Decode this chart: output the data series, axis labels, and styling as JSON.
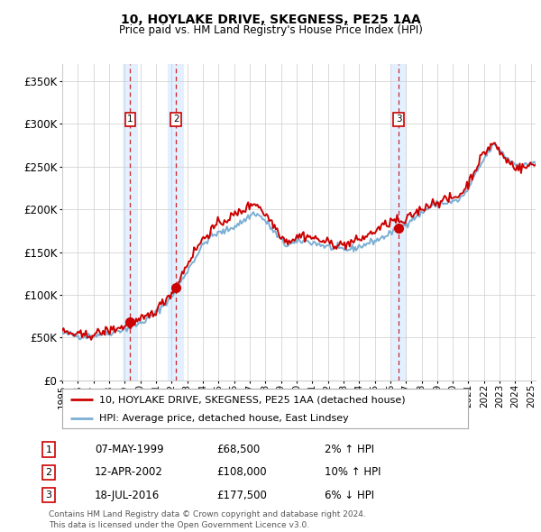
{
  "title": "10, HOYLAKE DRIVE, SKEGNESS, PE25 1AA",
  "subtitle": "Price paid vs. HM Land Registry's House Price Index (HPI)",
  "ylim": [
    0,
    370000
  ],
  "yticks": [
    0,
    50000,
    100000,
    150000,
    200000,
    250000,
    300000,
    350000
  ],
  "ytick_labels": [
    "£0",
    "£50K",
    "£100K",
    "£150K",
    "£200K",
    "£250K",
    "£300K",
    "£350K"
  ],
  "sale_years_decimal": [
    1999.354,
    2002.279,
    2016.542
  ],
  "sale_prices": [
    68500,
    108000,
    177500
  ],
  "sale_labels": [
    "1",
    "2",
    "3"
  ],
  "sale_pct": [
    "2% ↑ HPI",
    "10% ↑ HPI",
    "6% ↓ HPI"
  ],
  "sale_date_strs": [
    "07-MAY-1999",
    "12-APR-2002",
    "18-JUL-2016"
  ],
  "sale_price_strs": [
    "£68,500",
    "£108,000",
    "£177,500"
  ],
  "hpi_color": "#7bafd4",
  "price_color": "#cc0000",
  "shade_color": "#ddeeff",
  "grid_color": "#cccccc",
  "background_color": "#ffffff",
  "legend_label_price": "10, HOYLAKE DRIVE, SKEGNESS, PE25 1AA (detached house)",
  "legend_label_hpi": "HPI: Average price, detached house, East Lindsey",
  "footer": "Contains HM Land Registry data © Crown copyright and database right 2024.\nThis data is licensed under the Open Government Licence v3.0.",
  "xlim_start": 1995.0,
  "xlim_end": 2025.3,
  "hpi_key_points": [
    [
      1995.0,
      55000
    ],
    [
      1995.5,
      54000
    ],
    [
      1996.0,
      52000
    ],
    [
      1996.5,
      51500
    ],
    [
      1997.0,
      52500
    ],
    [
      1997.5,
      54000
    ],
    [
      1998.0,
      56000
    ],
    [
      1998.5,
      58000
    ],
    [
      1999.0,
      60000
    ],
    [
      1999.5,
      63000
    ],
    [
      2000.0,
      67000
    ],
    [
      2000.5,
      72000
    ],
    [
      2001.0,
      79000
    ],
    [
      2001.5,
      88000
    ],
    [
      2002.0,
      98000
    ],
    [
      2002.5,
      112000
    ],
    [
      2003.0,
      128000
    ],
    [
      2003.5,
      143000
    ],
    [
      2004.0,
      158000
    ],
    [
      2004.5,
      168000
    ],
    [
      2005.0,
      172000
    ],
    [
      2005.5,
      175000
    ],
    [
      2006.0,
      180000
    ],
    [
      2006.5,
      185000
    ],
    [
      2007.0,
      192000
    ],
    [
      2007.3,
      196000
    ],
    [
      2007.8,
      190000
    ],
    [
      2008.3,
      180000
    ],
    [
      2008.8,
      168000
    ],
    [
      2009.3,
      158000
    ],
    [
      2009.8,
      160000
    ],
    [
      2010.3,
      163000
    ],
    [
      2010.8,
      162000
    ],
    [
      2011.3,
      160000
    ],
    [
      2011.8,
      157000
    ],
    [
      2012.3,
      155000
    ],
    [
      2012.8,
      153000
    ],
    [
      2013.3,
      153000
    ],
    [
      2013.8,
      155000
    ],
    [
      2014.3,
      158000
    ],
    [
      2014.8,
      162000
    ],
    [
      2015.3,
      165000
    ],
    [
      2015.8,
      170000
    ],
    [
      2016.3,
      175000
    ],
    [
      2016.8,
      180000
    ],
    [
      2017.3,
      188000
    ],
    [
      2017.8,
      193000
    ],
    [
      2018.3,
      200000
    ],
    [
      2018.8,
      205000
    ],
    [
      2019.3,
      207000
    ],
    [
      2019.8,
      208000
    ],
    [
      2020.3,
      210000
    ],
    [
      2020.8,
      218000
    ],
    [
      2021.3,
      235000
    ],
    [
      2021.8,
      252000
    ],
    [
      2022.3,
      268000
    ],
    [
      2022.6,
      275000
    ],
    [
      2022.9,
      272000
    ],
    [
      2023.2,
      265000
    ],
    [
      2023.6,
      258000
    ],
    [
      2024.0,
      253000
    ],
    [
      2024.4,
      250000
    ],
    [
      2024.8,
      252000
    ],
    [
      2025.0,
      255000
    ]
  ],
  "price_key_points": [
    [
      1995.0,
      57000
    ],
    [
      1995.5,
      55000
    ],
    [
      1996.0,
      53000
    ],
    [
      1996.5,
      52000
    ],
    [
      1997.0,
      54000
    ],
    [
      1997.5,
      56000
    ],
    [
      1998.0,
      58500
    ],
    [
      1998.5,
      61000
    ],
    [
      1999.0,
      63000
    ],
    [
      1999.5,
      66000
    ],
    [
      2000.0,
      70000
    ],
    [
      2000.5,
      75000
    ],
    [
      2001.0,
      82000
    ],
    [
      2001.5,
      92000
    ],
    [
      2002.0,
      103000
    ],
    [
      2002.5,
      118000
    ],
    [
      2003.0,
      136000
    ],
    [
      2003.5,
      152000
    ],
    [
      2004.0,
      165000
    ],
    [
      2004.5,
      175000
    ],
    [
      2005.0,
      183000
    ],
    [
      2005.5,
      188000
    ],
    [
      2006.0,
      193000
    ],
    [
      2006.5,
      198000
    ],
    [
      2007.0,
      204000
    ],
    [
      2007.3,
      208000
    ],
    [
      2007.6,
      204000
    ],
    [
      2007.8,
      198000
    ],
    [
      2008.3,
      188000
    ],
    [
      2008.8,
      175000
    ],
    [
      2009.3,
      163000
    ],
    [
      2009.8,
      165000
    ],
    [
      2010.3,
      170000
    ],
    [
      2010.8,
      168000
    ],
    [
      2011.3,
      165000
    ],
    [
      2011.8,
      162000
    ],
    [
      2012.3,
      160000
    ],
    [
      2012.8,
      158000
    ],
    [
      2013.3,
      160000
    ],
    [
      2013.8,
      163000
    ],
    [
      2014.3,
      167000
    ],
    [
      2014.8,
      172000
    ],
    [
      2015.3,
      178000
    ],
    [
      2015.8,
      183000
    ],
    [
      2016.3,
      188000
    ],
    [
      2016.8,
      183000
    ],
    [
      2017.3,
      192000
    ],
    [
      2017.8,
      198000
    ],
    [
      2018.3,
      204000
    ],
    [
      2018.8,
      208000
    ],
    [
      2019.3,
      210000
    ],
    [
      2019.8,
      212000
    ],
    [
      2020.3,
      215000
    ],
    [
      2020.8,
      224000
    ],
    [
      2021.3,
      242000
    ],
    [
      2021.8,
      260000
    ],
    [
      2022.3,
      272000
    ],
    [
      2022.6,
      278000
    ],
    [
      2022.9,
      270000
    ],
    [
      2023.2,
      262000
    ],
    [
      2023.6,
      255000
    ],
    [
      2024.0,
      250000
    ],
    [
      2024.4,
      248000
    ],
    [
      2024.8,
      250000
    ],
    [
      2025.0,
      252000
    ]
  ]
}
